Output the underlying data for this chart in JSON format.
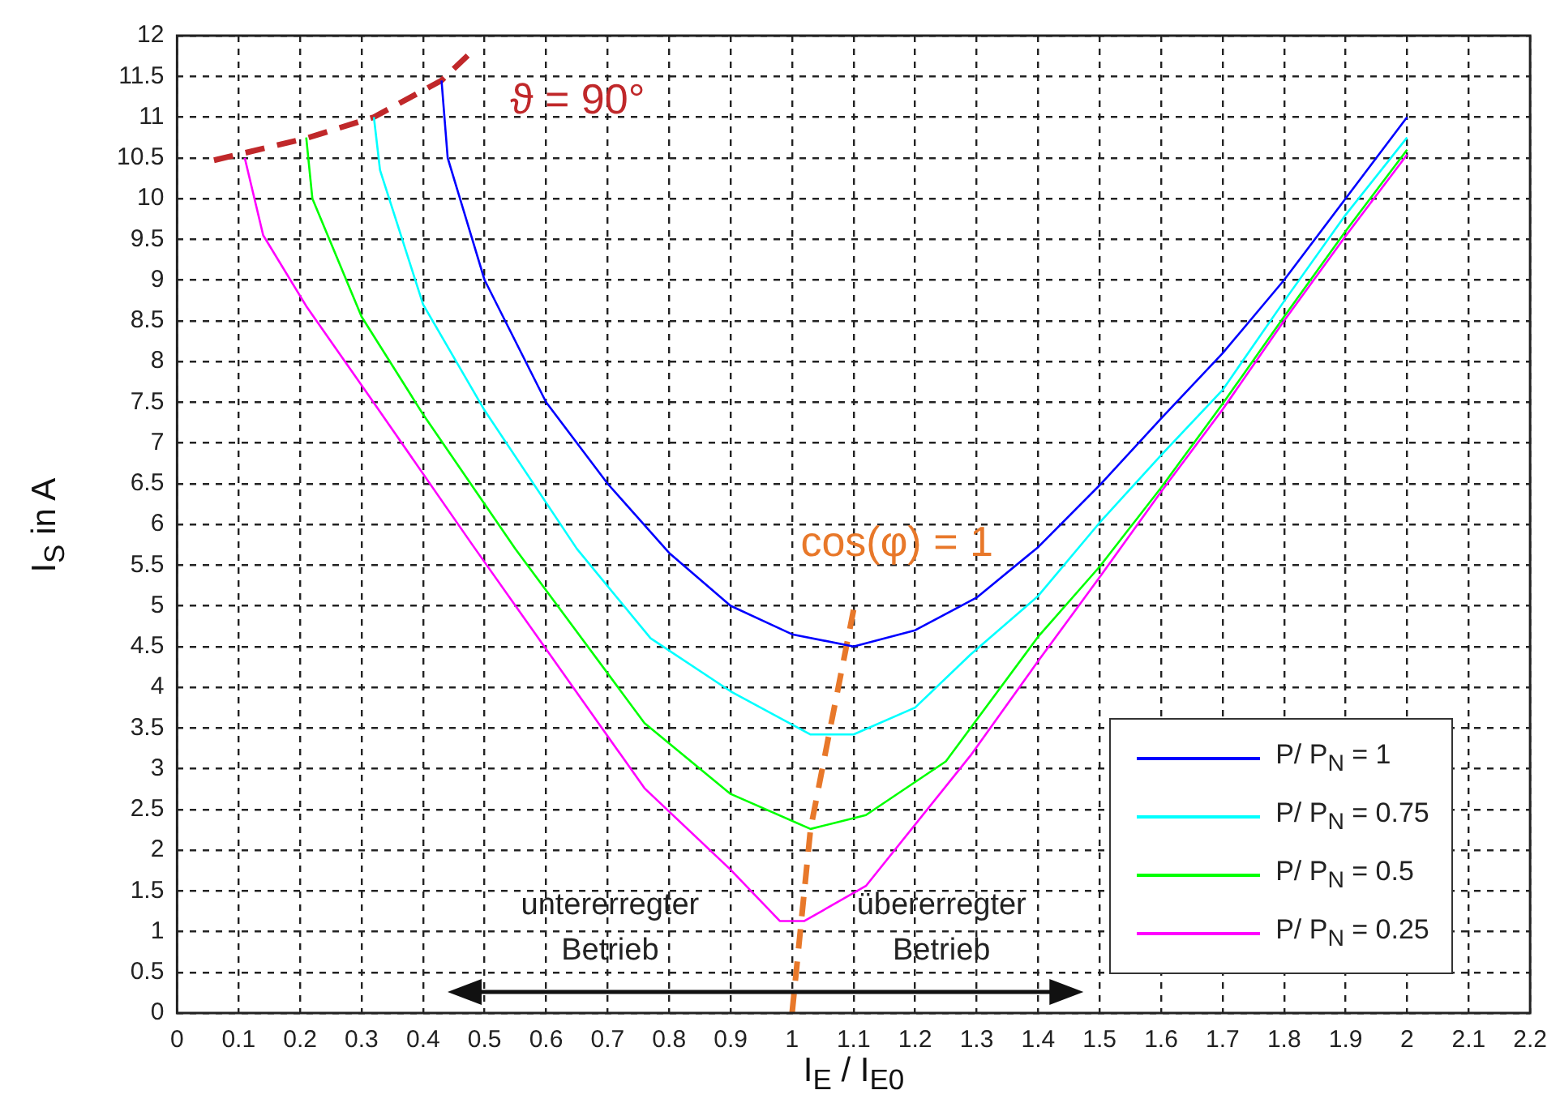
{
  "chart_data": {
    "type": "line",
    "xlabel": "I$_{E}$ / I$_{E0}$",
    "ylabel": "I$_{S}$ in A",
    "xlim": [
      0,
      2.2
    ],
    "xticks": [
      0,
      0.1,
      0.2,
      0.3,
      0.4,
      0.5,
      0.6,
      0.7,
      0.8,
      0.9,
      1,
      1.1,
      1.2,
      1.3,
      1.4,
      1.5,
      1.6,
      1.7,
      1.8,
      1.9,
      2,
      2.1,
      2.2
    ],
    "ylim": [
      0,
      12
    ],
    "yticks": [
      0,
      0.5,
      1,
      1.5,
      2,
      2.5,
      3,
      3.5,
      4,
      4.5,
      5,
      5.5,
      6,
      6.5,
      7,
      7.5,
      8,
      8.5,
      9,
      9.5,
      10,
      10.5,
      11,
      11.5,
      12
    ],
    "grid": true,
    "legend": "bottom right",
    "marker": "none",
    "line_style": "solid",
    "series": [
      {
        "name": "P/ P$_{N}$ = 1",
        "color": "#0000ff",
        "x": [
          0.43,
          0.44,
          0.5,
          0.6,
          0.7,
          0.8,
          0.9,
          1.0,
          1.1,
          1.2,
          1.3,
          1.4,
          1.5,
          1.6,
          1.7,
          1.8,
          1.9,
          2.0
        ],
        "values": [
          11.45,
          10.5,
          9.0,
          7.5,
          6.5,
          5.65,
          5.0,
          4.65,
          4.5,
          4.7,
          5.1,
          5.72,
          6.48,
          7.3,
          8.1,
          9.0,
          10.0,
          11.0
        ]
      },
      {
        "name": "P/ P$_{N}$ = 0.75",
        "color": "#00ffff",
        "x": [
          0.32,
          0.33,
          0.4,
          0.5,
          0.65,
          0.77,
          0.9,
          1.03,
          1.1,
          1.2,
          1.29,
          1.4,
          1.5,
          1.6,
          1.7,
          1.8,
          1.9,
          2.0
        ],
        "values": [
          11.0,
          10.35,
          8.7,
          7.4,
          5.7,
          4.6,
          3.95,
          3.42,
          3.42,
          3.75,
          4.4,
          5.12,
          6.02,
          6.85,
          7.65,
          8.74,
          9.8,
          10.75
        ]
      },
      {
        "name": "P/ P$_{N}$ = 0.5",
        "color": "#00ff00",
        "x": [
          0.21,
          0.22,
          0.3,
          0.4,
          0.55,
          0.76,
          0.9,
          1.03,
          1.12,
          1.25,
          1.4,
          1.5,
          1.6,
          1.7,
          1.8,
          1.9,
          2.0
        ],
        "values": [
          10.75,
          10.0,
          8.55,
          7.35,
          5.7,
          3.56,
          2.69,
          2.26,
          2.43,
          3.09,
          4.62,
          5.48,
          6.45,
          7.48,
          8.55,
          9.6,
          10.6
        ]
      },
      {
        "name": "P/ P$_{N}$ = 0.25",
        "color": "#ff00ff",
        "x": [
          0.11,
          0.14,
          0.21,
          0.31,
          0.48,
          0.76,
          0.9,
          0.98,
          1.02,
          1.12,
          1.29,
          1.4,
          1.5,
          1.6,
          1.7,
          1.8,
          1.9,
          2.0
        ],
        "values": [
          10.5,
          9.55,
          8.68,
          7.6,
          5.75,
          2.76,
          1.76,
          1.13,
          1.13,
          1.56,
          3.16,
          4.32,
          5.35,
          6.4,
          7.41,
          8.5,
          9.54,
          10.54
        ]
      },
      {
        "line_style": "dashed",
        "color": "#c0282a",
        "x": [
          0.06,
          0.21,
          0.32,
          0.43,
          0.48
        ],
        "values": [
          10.47,
          10.74,
          11.0,
          11.45,
          11.81
        ]
      },
      {
        "line_style": "dashed",
        "color": "#e8782a",
        "x": [
          1.0,
          1.03,
          1.06,
          1.1
        ],
        "values": [
          0,
          2.26,
          3.42,
          4.95
        ]
      }
    ],
    "annotations": [
      "untererregter Betrieb",
      "übererregter Betrieb",
      "ϑ = 90°",
      "cos(φ) = 1"
    ]
  }
}
